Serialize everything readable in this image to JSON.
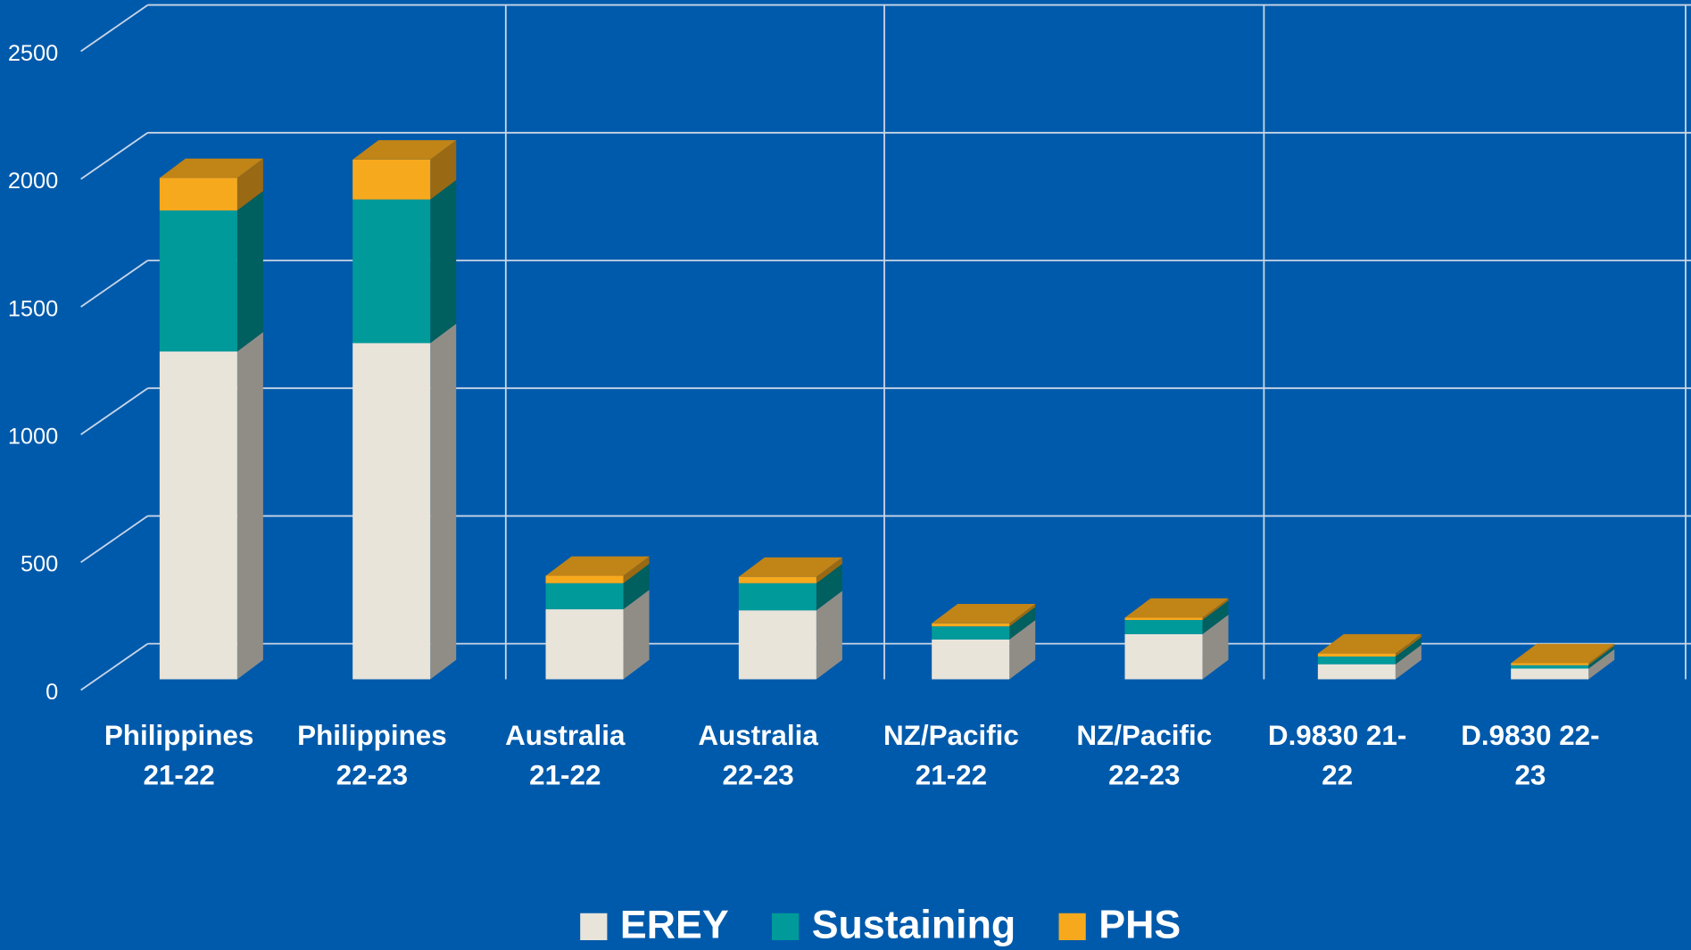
{
  "chart_data": {
    "type": "bar3d_stacked",
    "categories": [
      "Philippines 21-22",
      "Philippines 22-23",
      "Australia 21-22",
      "Australia 22-23",
      "NZ/Pacific 21-22",
      "NZ/Pacific 22-23",
      "D.9830 21-22",
      "D.9830 22-23"
    ],
    "series": [
      {
        "name": "EREY",
        "color": "#e8e4da",
        "values": [
          1283,
          1316,
          274,
          270,
          156,
          177,
          59,
          42
        ]
      },
      {
        "name": "Sustaining",
        "color": "#009a9a",
        "values": [
          552,
          562,
          102,
          106,
          51,
          55,
          30,
          13
        ]
      },
      {
        "name": "PHS",
        "color": "#f7a91e",
        "values": [
          127,
          156,
          29,
          25,
          12,
          9,
          12,
          8
        ]
      }
    ],
    "ylim": [
      0,
      2500
    ],
    "yticks": [
      0,
      500,
      1000,
      1500,
      2000,
      2500
    ],
    "grid": true,
    "legend": "bottom"
  }
}
